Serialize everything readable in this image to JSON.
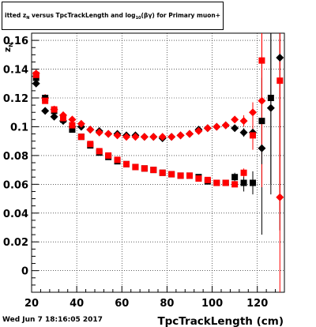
{
  "figure": {
    "title_prefix": "itted  z",
    "title_prefix_sub": "N",
    "title_mid": "  versus TpcTrackLength and log",
    "title_mid_sub": "10",
    "title_suffix": "(βγ) for Primary muon+",
    "timestamp": "Wed Jun  7 18:16:05 2017"
  },
  "chart_data": {
    "type": "scatter",
    "title": "itted z_N versus TpcTrackLength and log10(βγ) for Primary muon+",
    "xlabel": "TpcTrackLength (cm)",
    "ylabel": "z_N",
    "xlim": [
      20,
      132
    ],
    "ylim": [
      -0.015,
      0.165
    ],
    "xticks": [
      20,
      40,
      60,
      80,
      100,
      120
    ],
    "yticks": [
      0,
      0.02,
      0.04,
      0.06,
      0.08,
      0.1,
      0.12,
      0.14,
      0.16
    ],
    "yticklabels": [
      "0",
      "0.02",
      "0.04",
      "0.06",
      "0.08",
      "0.1",
      "0.12",
      "0.14",
      "0.16"
    ],
    "grid": true,
    "series": [
      {
        "color": "#000000",
        "marker": "diamond",
        "points": [
          [
            22,
            0.13
          ],
          [
            26,
            0.111
          ],
          [
            30,
            0.107
          ],
          [
            34,
            0.104
          ],
          [
            38,
            0.1
          ],
          [
            42,
            0.1
          ],
          [
            46,
            0.098
          ],
          [
            50,
            0.097
          ],
          [
            54,
            0.095
          ],
          [
            58,
            0.095
          ],
          [
            62,
            0.094
          ],
          [
            66,
            0.094
          ],
          [
            70,
            0.093
          ],
          [
            74,
            0.093
          ],
          [
            78,
            0.092
          ],
          [
            82,
            0.093
          ],
          [
            86,
            0.094
          ],
          [
            90,
            0.095
          ],
          [
            94,
            0.098
          ],
          [
            98,
            0.099
          ],
          [
            102,
            0.1
          ],
          [
            106,
            0.101
          ],
          [
            110,
            0.099
          ],
          [
            114,
            0.096
          ],
          [
            118,
            0.096
          ],
          [
            122,
            0.085
          ],
          [
            126,
            0.113
          ],
          [
            130,
            0.148
          ]
        ],
        "errors": [
          0,
          0,
          0,
          0,
          0,
          0,
          0,
          0,
          0,
          0,
          0,
          0,
          0,
          0,
          0,
          0,
          0,
          0,
          0,
          0,
          0,
          0,
          0,
          0.003,
          0.007,
          0.06,
          0.06,
          0.12
        ]
      },
      {
        "color": "#ff0000",
        "marker": "diamond",
        "points": [
          [
            22,
            0.137
          ],
          [
            26,
            0.12
          ],
          [
            30,
            0.112
          ],
          [
            34,
            0.108
          ],
          [
            38,
            0.105
          ],
          [
            42,
            0.102
          ],
          [
            46,
            0.098
          ],
          [
            50,
            0.096
          ],
          [
            54,
            0.095
          ],
          [
            58,
            0.094
          ],
          [
            62,
            0.093
          ],
          [
            66,
            0.093
          ],
          [
            70,
            0.093
          ],
          [
            74,
            0.093
          ],
          [
            78,
            0.093
          ],
          [
            82,
            0.093
          ],
          [
            86,
            0.094
          ],
          [
            90,
            0.095
          ],
          [
            94,
            0.097
          ],
          [
            98,
            0.099
          ],
          [
            102,
            0.1
          ],
          [
            106,
            0.101
          ],
          [
            110,
            0.105
          ],
          [
            114,
            0.104
          ],
          [
            118,
            0.11
          ],
          [
            122,
            0.118
          ],
          [
            130,
            0.051
          ]
        ],
        "errors": [
          0,
          0,
          0,
          0,
          0,
          0,
          0,
          0,
          0,
          0,
          0,
          0,
          0,
          0,
          0,
          0,
          0,
          0,
          0,
          0,
          0,
          0,
          0.002,
          0.004,
          0.007,
          0.06,
          0.11
        ]
      },
      {
        "color": "#000000",
        "marker": "square",
        "points": [
          [
            22,
            0.134
          ],
          [
            26,
            0.12
          ],
          [
            30,
            0.111
          ],
          [
            34,
            0.105
          ],
          [
            38,
            0.098
          ],
          [
            42,
            0.093
          ],
          [
            46,
            0.087
          ],
          [
            50,
            0.082
          ],
          [
            54,
            0.079
          ],
          [
            58,
            0.076
          ],
          [
            62,
            0.074
          ],
          [
            66,
            0.072
          ],
          [
            70,
            0.071
          ],
          [
            74,
            0.07
          ],
          [
            78,
            0.068
          ],
          [
            82,
            0.067
          ],
          [
            86,
            0.066
          ],
          [
            90,
            0.066
          ],
          [
            94,
            0.065
          ],
          [
            98,
            0.062
          ],
          [
            102,
            0.061
          ],
          [
            106,
            0.061
          ],
          [
            110,
            0.065
          ],
          [
            114,
            0.061
          ],
          [
            118,
            0.061
          ],
          [
            122,
            0.104
          ],
          [
            126,
            0.12
          ]
        ],
        "errors": [
          0,
          0,
          0,
          0,
          0,
          0,
          0,
          0,
          0,
          0,
          0,
          0,
          0,
          0,
          0,
          0,
          0,
          0,
          0,
          0,
          0,
          0,
          0.003,
          0.006,
          0.008,
          0.03,
          0.06
        ]
      },
      {
        "color": "#ff0000",
        "marker": "square",
        "points": [
          [
            22,
            0.136
          ],
          [
            26,
            0.118
          ],
          [
            30,
            0.112
          ],
          [
            34,
            0.106
          ],
          [
            38,
            0.101
          ],
          [
            42,
            0.093
          ],
          [
            46,
            0.088
          ],
          [
            50,
            0.083
          ],
          [
            54,
            0.08
          ],
          [
            58,
            0.077
          ],
          [
            62,
            0.074
          ],
          [
            66,
            0.072
          ],
          [
            70,
            0.071
          ],
          [
            74,
            0.07
          ],
          [
            78,
            0.068
          ],
          [
            82,
            0.067
          ],
          [
            86,
            0.066
          ],
          [
            90,
            0.066
          ],
          [
            94,
            0.064
          ],
          [
            98,
            0.063
          ],
          [
            102,
            0.061
          ],
          [
            106,
            0.061
          ],
          [
            110,
            0.06
          ],
          [
            114,
            0.068
          ],
          [
            118,
            0.094
          ],
          [
            122,
            0.146
          ],
          [
            130,
            0.132
          ]
        ],
        "errors": [
          0,
          0,
          0,
          0,
          0,
          0,
          0,
          0,
          0,
          0,
          0,
          0,
          0,
          0,
          0,
          0,
          0,
          0,
          0,
          0,
          0,
          0,
          0.002,
          0.003,
          0.01,
          0.06,
          0.09
        ]
      }
    ]
  }
}
